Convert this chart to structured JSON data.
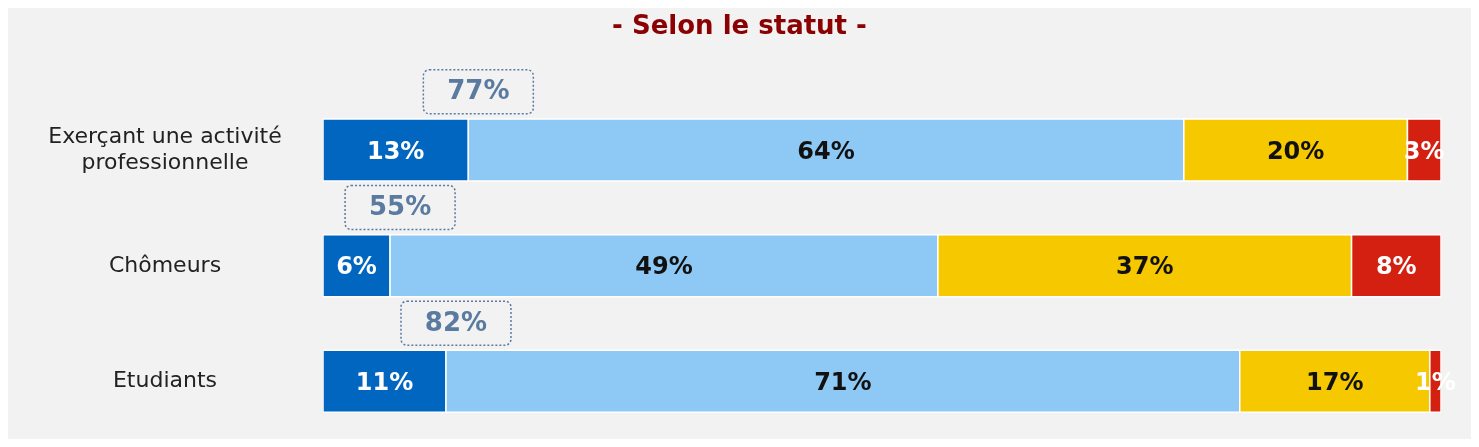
{
  "chart_data": {
    "type": "bar",
    "orientation": "horizontal",
    "stacked": true,
    "title": "- Selon le statut -",
    "categories": [
      "Exerçant une activité professionnelle",
      "Chômeurs",
      "Etudiants"
    ],
    "series": [
      {
        "color": "#0066c0",
        "values": [
          13,
          6,
          11
        ],
        "value_labels": [
          "13%",
          "6%",
          "11%"
        ]
      },
      {
        "color": "#8ec8f5",
        "values": [
          64,
          49,
          71
        ],
        "value_labels": [
          "64%",
          "49%",
          "71%"
        ]
      },
      {
        "color": "#f5c800",
        "values": [
          20,
          37,
          17
        ],
        "value_labels": [
          "20%",
          "37%",
          "17%"
        ]
      },
      {
        "color": "#d42010",
        "values": [
          3,
          8,
          1
        ],
        "value_labels": [
          "3%",
          "8%",
          "1%"
        ]
      }
    ],
    "annotations": [
      {
        "text": "77%",
        "x": 13,
        "y": "Exerçant une activité professionnelle"
      },
      {
        "text": "55%",
        "x": 6,
        "y": "Chômeurs"
      },
      {
        "text": "82%",
        "x": 11,
        "y": "Etudiants"
      }
    ],
    "grid": false,
    "legend": false
  }
}
